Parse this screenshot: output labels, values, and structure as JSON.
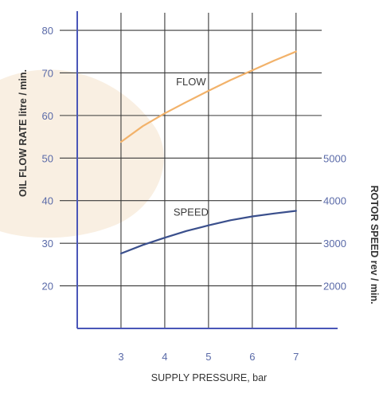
{
  "chart_data": {
    "type": "line",
    "x": [
      3,
      4,
      5,
      6,
      7
    ],
    "xlim": [
      2,
      7.95
    ],
    "xticks": [
      3,
      4,
      5,
      6,
      7
    ],
    "xlabel": "SUPPLY PRESSURE, bar",
    "y_left": {
      "label": "OIL FLOW RATE litre / min.",
      "lim": [
        10,
        83
      ],
      "ticks": [
        20,
        30,
        40,
        50,
        60,
        70,
        80
      ]
    },
    "y_right": {
      "label": "ROTOR SPEED rev / min.",
      "lim": [
        1000,
        8300
      ],
      "ticks": [
        2000,
        3000,
        4000,
        5000
      ]
    },
    "grid": true,
    "series": [
      {
        "name": "FLOW",
        "axis": "left",
        "color": "#f2b26a",
        "x": [
          3,
          3.5,
          4,
          4.5,
          5,
          5.5,
          6,
          6.5,
          7
        ],
        "values": [
          53.8,
          57.5,
          60.5,
          63.2,
          65.8,
          68.3,
          70.6,
          72.9,
          75.0
        ]
      },
      {
        "name": "SPEED",
        "axis": "right",
        "color": "#3a4f8c",
        "x": [
          3,
          3.5,
          4,
          4.5,
          5,
          5.5,
          6,
          6.5,
          7
        ],
        "values": [
          2760,
          2960,
          3130,
          3290,
          3420,
          3540,
          3630,
          3700,
          3760
        ]
      }
    ]
  },
  "colors": {
    "axis": "#4a56b8",
    "grid": "#3a3a3a",
    "tick_text": "#5a6aa8",
    "label_text": "#333333",
    "watermark": "#f7e8d6"
  }
}
